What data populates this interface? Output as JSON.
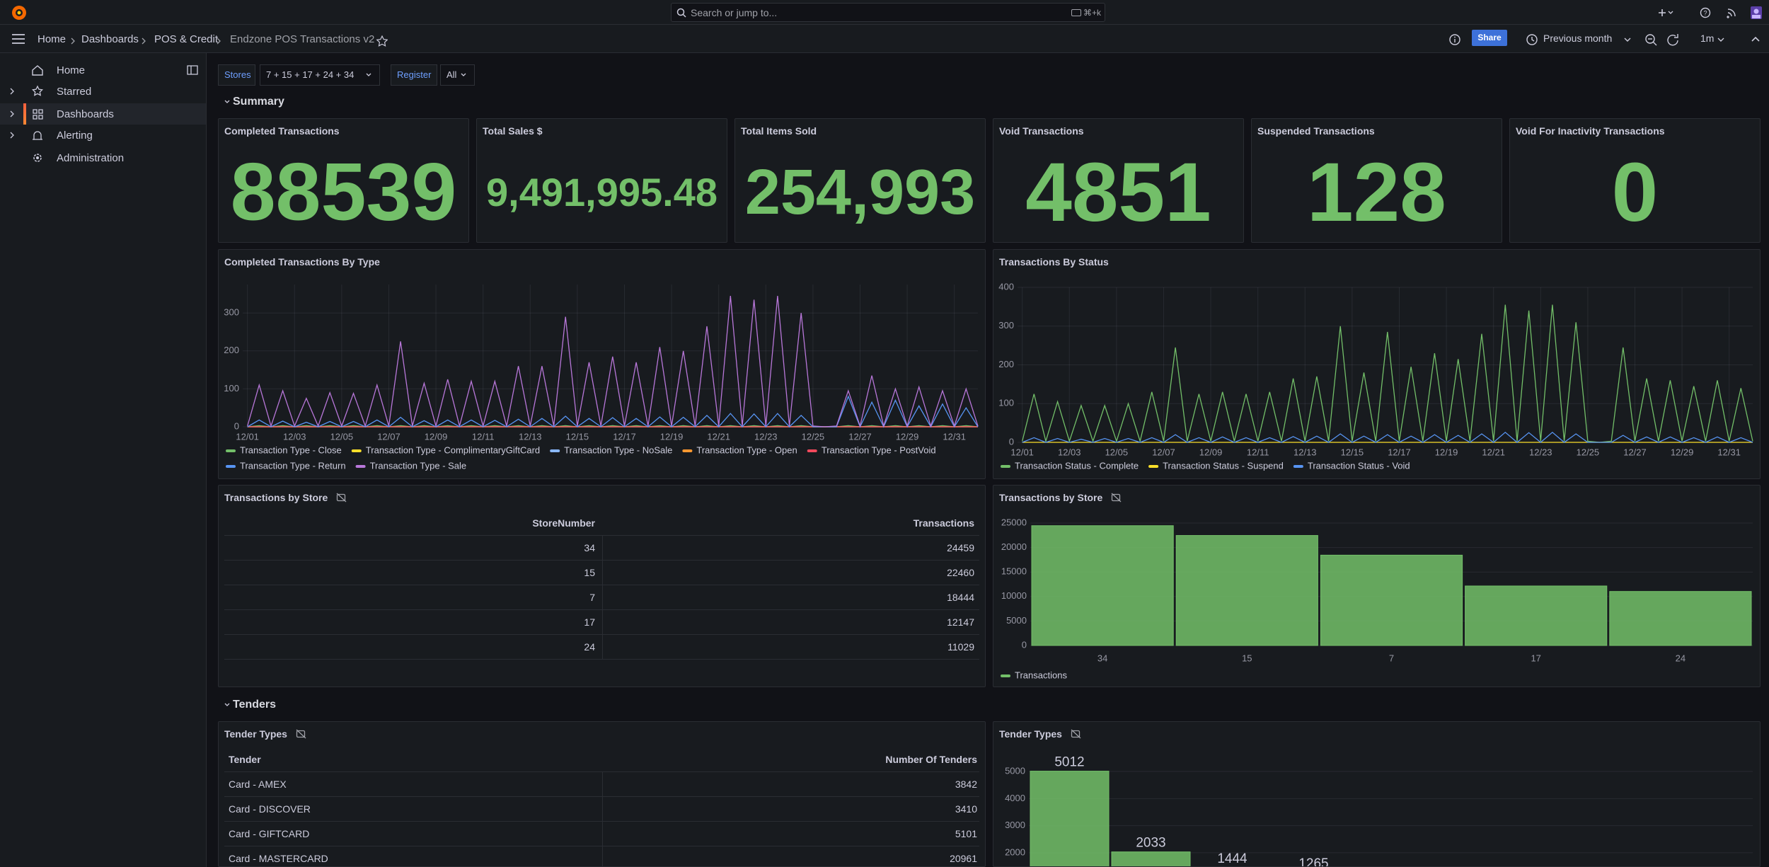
{
  "topbar": {
    "search": "Search or jump to...",
    "shortcut": "⌘+k"
  },
  "breadcrumbs": [
    "Home",
    "Dashboards",
    "POS & Credit",
    "Endzone POS Transactions v2"
  ],
  "toolbar": {
    "share": "Share",
    "time_range": "Previous month",
    "refresh": "1m"
  },
  "sidebar": [
    "Home",
    "Starred",
    "Dashboards",
    "Alerting",
    "Administration"
  ],
  "variables": [
    {
      "label": "Stores",
      "value": "7 + 15 + 17 + 24 + 34"
    },
    {
      "label": "Register",
      "value": "All"
    }
  ],
  "rows": [
    "Summary",
    "Tenders"
  ],
  "stats": [
    {
      "title": "Completed Transactions",
      "value": 88539
    },
    {
      "title": "Total Sales $",
      "value": "9,491,995.48"
    },
    {
      "title": "Total Items Sold",
      "value": "254,993"
    },
    {
      "title": "Void Transactions",
      "value": 4851
    },
    {
      "title": "Suspended Transactions",
      "value": 128
    },
    {
      "title": "Void For Inactivity Transactions",
      "value": 0
    }
  ],
  "tables": [
    {
      "title": "Transactions by Store",
      "columns": [
        "StoreNumber",
        "Transactions"
      ],
      "rows": [
        [
          34,
          24459
        ],
        [
          15,
          22460
        ],
        [
          7,
          18444
        ],
        [
          17,
          12147
        ],
        [
          24,
          11029
        ]
      ]
    },
    {
      "title": "Tender Types",
      "columns": [
        "Tender",
        "Number Of Tenders"
      ],
      "rows": [
        [
          "Card - AMEX",
          3842
        ],
        [
          "Card - DISCOVER",
          3410
        ],
        [
          "Card - GIFTCARD",
          5101
        ],
        [
          "Card - MASTERCARD",
          20961
        ]
      ]
    }
  ],
  "chart_data": [
    {
      "type": "line",
      "title": "Completed Transactions By Type",
      "grid": true,
      "x": [
        1,
        1.5,
        2,
        2.5,
        3,
        3.5,
        4,
        4.5,
        5,
        5.5,
        6,
        6.5,
        7,
        7.5,
        8,
        8.5,
        9,
        9.5,
        10,
        10.5,
        11,
        11.5,
        12,
        12.5,
        13,
        13.5,
        14,
        14.5,
        15,
        15.5,
        16,
        16.5,
        17,
        17.5,
        18,
        18.5,
        19,
        19.5,
        20,
        20.5,
        21,
        21.5,
        22,
        22.5,
        23,
        23.5,
        24,
        24.5,
        25,
        25.5,
        26,
        26.5,
        27,
        27.5,
        28,
        28.5,
        29,
        29.5,
        30,
        30.5,
        31,
        31.5,
        32
      ],
      "xlim": [
        0.8,
        32
      ],
      "xticks": [
        {
          "value": 1,
          "label": "12/01"
        },
        {
          "value": 3,
          "label": "12/03"
        },
        {
          "value": 5,
          "label": "12/05"
        },
        {
          "value": 7,
          "label": "12/07"
        },
        {
          "value": 9,
          "label": "12/09"
        },
        {
          "value": 11,
          "label": "12/11"
        },
        {
          "value": 13,
          "label": "12/13"
        },
        {
          "value": 15,
          "label": "12/15"
        },
        {
          "value": 17,
          "label": "12/17"
        },
        {
          "value": 19,
          "label": "12/19"
        },
        {
          "value": 21,
          "label": "12/21"
        },
        {
          "value": 23,
          "label": "12/23"
        },
        {
          "value": 25,
          "label": "12/25"
        },
        {
          "value": 27,
          "label": "12/27"
        },
        {
          "value": 29,
          "label": "12/29"
        },
        {
          "value": 31,
          "label": "12/31"
        }
      ],
      "ylim": [
        0,
        375
      ],
      "yticks": [
        0,
        100,
        200,
        300
      ],
      "series": [
        {
          "name": "Transaction Type - Close",
          "color": "#73bf69",
          "values": [
            0,
            3,
            0,
            3,
            0,
            3,
            0,
            3,
            0,
            3,
            0,
            3,
            0,
            3,
            0,
            3,
            0,
            3,
            0,
            3,
            0,
            3,
            0,
            3,
            0,
            3,
            0,
            3,
            0,
            3,
            0,
            3,
            0,
            3,
            0,
            3,
            0,
            3,
            0,
            3,
            0,
            3,
            0,
            3,
            0,
            3,
            0,
            3,
            0,
            0,
            0,
            3,
            0,
            3,
            0,
            3,
            0,
            3,
            0,
            3,
            0,
            3,
            0
          ]
        },
        {
          "name": "Transaction Type - ComplimentaryGiftCard",
          "color": "#fade2a",
          "values": [
            0,
            0,
            0,
            0,
            0,
            0,
            0,
            0,
            0,
            0,
            0,
            0,
            0,
            0,
            0,
            0,
            0,
            0,
            0,
            0,
            0,
            0,
            0,
            0,
            0,
            0,
            0,
            0,
            0,
            0,
            0,
            0,
            0,
            0,
            0,
            0,
            0,
            0,
            0,
            0,
            0,
            0,
            0,
            0,
            0,
            0,
            0,
            0,
            0,
            0,
            0,
            0,
            0,
            0,
            0,
            0,
            0,
            0,
            0,
            0,
            0,
            0,
            0
          ]
        },
        {
          "name": "Transaction Type - NoSale",
          "color": "#8ab8ff",
          "values": [
            0,
            0,
            0,
            0,
            0,
            0,
            0,
            0,
            0,
            0,
            0,
            0,
            0,
            0,
            0,
            0,
            0,
            0,
            0,
            0,
            0,
            0,
            0,
            0,
            0,
            0,
            0,
            0,
            0,
            0,
            0,
            0,
            0,
            0,
            0,
            0,
            0,
            0,
            0,
            0,
            0,
            0,
            0,
            0,
            0,
            0,
            0,
            0,
            0,
            0,
            0,
            0,
            0,
            0,
            0,
            0,
            0,
            0,
            0,
            0,
            0,
            0,
            0
          ]
        },
        {
          "name": "Transaction Type - Open",
          "color": "#ff9830",
          "values": [
            0,
            0,
            0,
            0,
            0,
            0,
            0,
            0,
            0,
            0,
            0,
            0,
            0,
            0,
            0,
            0,
            0,
            0,
            0,
            0,
            0,
            0,
            0,
            0,
            0,
            0,
            0,
            0,
            0,
            0,
            0,
            0,
            0,
            0,
            0,
            0,
            0,
            0,
            0,
            0,
            0,
            0,
            0,
            0,
            0,
            0,
            0,
            0,
            0,
            0,
            0,
            0,
            0,
            0,
            0,
            0,
            0,
            0,
            0,
            0,
            0,
            0,
            0
          ]
        },
        {
          "name": "Transaction Type - PostVoid",
          "color": "#f2495c",
          "values": [
            0,
            0,
            0,
            0,
            0,
            0,
            0,
            0,
            0,
            0,
            0,
            0,
            0,
            0,
            0,
            0,
            0,
            0,
            0,
            0,
            0,
            0,
            0,
            0,
            0,
            0,
            0,
            0,
            0,
            0,
            0,
            0,
            0,
            0,
            0,
            0,
            0,
            0,
            0,
            0,
            0,
            0,
            0,
            0,
            0,
            0,
            0,
            0,
            0,
            0,
            0,
            0,
            0,
            0,
            0,
            0,
            0,
            0,
            0,
            0,
            0,
            0,
            0
          ]
        },
        {
          "name": "Transaction Type - Return",
          "color": "#5794f2",
          "values": [
            0,
            18,
            0,
            15,
            0,
            12,
            0,
            14,
            0,
            14,
            0,
            18,
            0,
            25,
            0,
            16,
            0,
            18,
            0,
            18,
            0,
            17,
            0,
            20,
            0,
            22,
            0,
            28,
            0,
            22,
            0,
            24,
            0,
            22,
            0,
            26,
            0,
            25,
            0,
            30,
            0,
            35,
            0,
            34,
            0,
            35,
            0,
            30,
            0,
            0,
            0,
            80,
            0,
            65,
            0,
            70,
            0,
            55,
            0,
            60,
            0,
            50,
            0
          ]
        },
        {
          "name": "Transaction Type - Sale",
          "color": "#b877d9",
          "values": [
            2,
            110,
            2,
            95,
            2,
            75,
            2,
            90,
            2,
            88,
            2,
            110,
            2,
            225,
            2,
            115,
            2,
            125,
            2,
            120,
            2,
            120,
            2,
            160,
            2,
            160,
            2,
            290,
            2,
            170,
            2,
            185,
            2,
            170,
            2,
            210,
            2,
            200,
            2,
            265,
            2,
            345,
            2,
            335,
            2,
            345,
            2,
            300,
            2,
            0,
            2,
            95,
            2,
            135,
            2,
            100,
            2,
            105,
            2,
            95,
            2,
            100,
            2
          ]
        }
      ]
    },
    {
      "type": "line",
      "title": "Transactions By Status",
      "grid": true,
      "x": [
        1,
        1.5,
        2,
        2.5,
        3,
        3.5,
        4,
        4.5,
        5,
        5.5,
        6,
        6.5,
        7,
        7.5,
        8,
        8.5,
        9,
        9.5,
        10,
        10.5,
        11,
        11.5,
        12,
        12.5,
        13,
        13.5,
        14,
        14.5,
        15,
        15.5,
        16,
        16.5,
        17,
        17.5,
        18,
        18.5,
        19,
        19.5,
        20,
        20.5,
        21,
        21.5,
        22,
        22.5,
        23,
        23.5,
        24,
        24.5,
        25,
        25.5,
        26,
        26.5,
        27,
        27.5,
        28,
        28.5,
        29,
        29.5,
        30,
        30.5,
        31,
        31.5,
        32
      ],
      "xlim": [
        0.8,
        32
      ],
      "xticks": [
        {
          "value": 1,
          "label": "12/01"
        },
        {
          "value": 3,
          "label": "12/03"
        },
        {
          "value": 5,
          "label": "12/05"
        },
        {
          "value": 7,
          "label": "12/07"
        },
        {
          "value": 9,
          "label": "12/09"
        },
        {
          "value": 11,
          "label": "12/11"
        },
        {
          "value": 13,
          "label": "12/13"
        },
        {
          "value": 15,
          "label": "12/15"
        },
        {
          "value": 17,
          "label": "12/17"
        },
        {
          "value": 19,
          "label": "12/19"
        },
        {
          "value": 21,
          "label": "12/21"
        },
        {
          "value": 23,
          "label": "12/23"
        },
        {
          "value": 25,
          "label": "12/25"
        },
        {
          "value": 27,
          "label": "12/27"
        },
        {
          "value": 29,
          "label": "12/29"
        },
        {
          "value": 31,
          "label": "12/31"
        }
      ],
      "ylim": [
        0,
        400
      ],
      "yticks": [
        0,
        100,
        200,
        300,
        400
      ],
      "series": [
        {
          "name": "Transaction Status - Complete",
          "color": "#73bf69",
          "values": [
            3,
            125,
            3,
            105,
            3,
            95,
            3,
            95,
            3,
            100,
            3,
            130,
            3,
            245,
            3,
            125,
            3,
            130,
            3,
            125,
            3,
            130,
            3,
            165,
            3,
            170,
            3,
            300,
            3,
            180,
            3,
            285,
            3,
            195,
            3,
            230,
            3,
            215,
            3,
            280,
            3,
            355,
            3,
            340,
            3,
            355,
            3,
            310,
            3,
            0,
            3,
            245,
            3,
            165,
            3,
            160,
            3,
            145,
            3,
            160,
            3,
            140,
            3
          ]
        },
        {
          "name": "Transaction Status - Suspend",
          "color": "#fade2a",
          "values": [
            0,
            0,
            0,
            0,
            0,
            0,
            0,
            0,
            0,
            0,
            0,
            0,
            0,
            0,
            0,
            0,
            0,
            0,
            0,
            0,
            0,
            0,
            0,
            0,
            0,
            0,
            0,
            0,
            0,
            0,
            0,
            0,
            0,
            0,
            0,
            0,
            0,
            0,
            0,
            0,
            0,
            0,
            0,
            0,
            0,
            0,
            0,
            0,
            0,
            0,
            0,
            0,
            0,
            0,
            0,
            0,
            0,
            0,
            0,
            0,
            0,
            0,
            0
          ]
        },
        {
          "name": "Transaction Status - Void",
          "color": "#5794f2",
          "values": [
            0,
            12,
            0,
            10,
            0,
            8,
            0,
            10,
            0,
            10,
            0,
            12,
            0,
            20,
            0,
            12,
            0,
            14,
            0,
            12,
            0,
            12,
            0,
            15,
            0,
            16,
            0,
            22,
            0,
            16,
            0,
            20,
            0,
            16,
            0,
            20,
            0,
            18,
            0,
            22,
            0,
            26,
            0,
            25,
            0,
            26,
            0,
            22,
            0,
            0,
            0,
            18,
            0,
            14,
            0,
            14,
            0,
            12,
            0,
            14,
            0,
            12,
            0
          ]
        }
      ]
    },
    {
      "type": "bar",
      "title": "Transactions by Store",
      "grid": true,
      "categories": [
        "34",
        "15",
        "7",
        "17",
        "24"
      ],
      "ylim": [
        0,
        25000
      ],
      "yticks": [
        0,
        5000,
        10000,
        15000,
        20000,
        25000
      ],
      "series": [
        {
          "name": "Transactions",
          "color": "#73bf69",
          "values": [
            24459,
            22460,
            18444,
            12147,
            11029
          ]
        }
      ]
    },
    {
      "type": "bar",
      "title": "Tender Types",
      "grid": true,
      "show_values": true,
      "categories": [
        null,
        null,
        null,
        null
      ],
      "ylim": [
        0,
        5100
      ],
      "yticks": [
        2000,
        3000,
        4000,
        5000
      ],
      "color": "#73bf69",
      "values": [
        5012,
        2033,
        1444,
        1265
      ]
    }
  ]
}
